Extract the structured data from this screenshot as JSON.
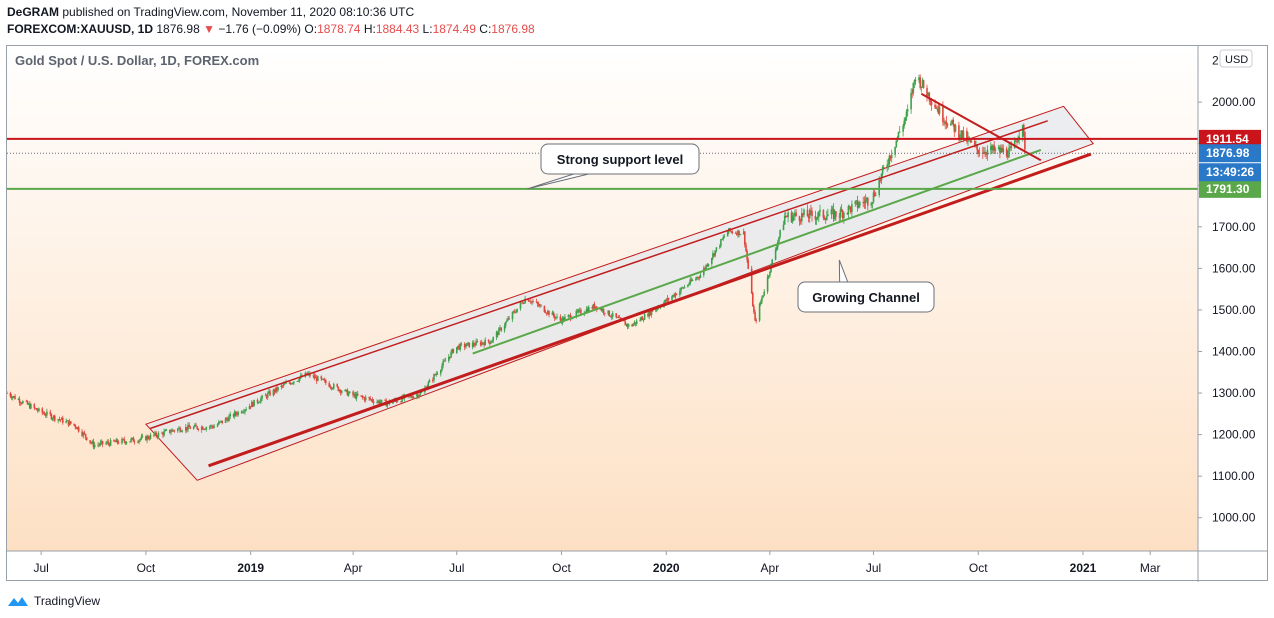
{
  "header": {
    "author": "DeGRAM",
    "published": "published on TradingView.com, November 11, 2020 08:10:36 UTC",
    "symbol": "FOREXCOM:XAUUSD, 1D",
    "last": "1876.98",
    "change": "−1.76 (−0.09%)",
    "o_label": "O:",
    "o_value": "1878.74",
    "h_label": "H:",
    "h_value": "1884.43",
    "l_label": "L:",
    "l_value": "1874.49",
    "c_label": "C:",
    "c_value": "1876.98"
  },
  "chart_data": {
    "type": "candlestick",
    "title": "Gold Spot / U.S. Dollar, 1D, FOREX.com",
    "currency": "USD",
    "y_ticks": [
      1000,
      1100,
      1200,
      1300,
      1400,
      1500,
      1600,
      1700,
      1800,
      1900,
      2000
    ],
    "y_tick_labels": [
      "1000.00",
      "1100.00",
      "1200.00",
      "1300.00",
      "1400.00",
      "1500.00",
      "1600.00",
      "1700.00",
      "1800.00",
      "1900.00",
      "2000.00"
    ],
    "y_top_partial_label": "2",
    "ylim": [
      920,
      2135
    ],
    "x_ticks": [
      {
        "label": "Jul",
        "bold": false
      },
      {
        "label": "Oct",
        "bold": false
      },
      {
        "label": "2019",
        "bold": true
      },
      {
        "label": "Apr",
        "bold": false
      },
      {
        "label": "Jul",
        "bold": false
      },
      {
        "label": "Oct",
        "bold": false
      },
      {
        "label": "2020",
        "bold": true
      },
      {
        "label": "Apr",
        "bold": false
      },
      {
        "label": "Jul",
        "bold": false
      },
      {
        "label": "Oct",
        "bold": false
      },
      {
        "label": "2021",
        "bold": true
      },
      {
        "label": "Mar",
        "bold": false
      }
    ],
    "price_path": [
      [
        "2018-06-01",
        1300
      ],
      [
        "2018-06-30",
        1255
      ],
      [
        "2018-07-31",
        1222
      ],
      [
        "2018-08-16",
        1175
      ],
      [
        "2018-09-28",
        1190
      ],
      [
        "2018-10-31",
        1215
      ],
      [
        "2018-11-30",
        1220
      ],
      [
        "2019-01-31",
        1320
      ],
      [
        "2019-02-20",
        1345
      ],
      [
        "2019-03-31",
        1295
      ],
      [
        "2019-04-30",
        1275
      ],
      [
        "2019-05-31",
        1300
      ],
      [
        "2019-06-30",
        1410
      ],
      [
        "2019-07-31",
        1425
      ],
      [
        "2019-08-31",
        1530
      ],
      [
        "2019-09-30",
        1475
      ],
      [
        "2019-10-31",
        1510
      ],
      [
        "2019-11-30",
        1460
      ],
      [
        "2019-12-31",
        1520
      ],
      [
        "2020-01-31",
        1585
      ],
      [
        "2020-02-24",
        1690
      ],
      [
        "2020-03-09",
        1685
      ],
      [
        "2020-03-19",
        1470
      ],
      [
        "2020-04-14",
        1725
      ],
      [
        "2020-05-31",
        1730
      ],
      [
        "2020-06-30",
        1770
      ],
      [
        "2020-07-31",
        1975
      ],
      [
        "2020-08-07",
        2065
      ],
      [
        "2020-08-31",
        1965
      ],
      [
        "2020-09-30",
        1885
      ],
      [
        "2020-10-31",
        1880
      ],
      [
        "2020-11-09",
        1955
      ],
      [
        "2020-11-11",
        1876.98
      ]
    ],
    "horizontal_levels": [
      {
        "name": "resistance",
        "value": 1911.54,
        "color": "#c9141b",
        "label": "1911.54"
      },
      {
        "name": "support",
        "value": 1791.3,
        "color": "#5aa84a",
        "label": "1791.30"
      },
      {
        "name": "last-price",
        "value": 1876.98,
        "color": "#2a79c9",
        "label": "1876.98"
      }
    ],
    "countdown_label": "13:49:26",
    "channel": {
      "outer": [
        [
          "2018-10-01",
          1225
        ],
        [
          "2020-12-15",
          1990
        ],
        [
          "2021-01-10",
          1900
        ],
        [
          "2018-11-15",
          1090
        ]
      ],
      "upper_line": [
        [
          "2018-10-05",
          1215
        ],
        [
          "2020-12-01",
          1955
        ]
      ],
      "lower_line": [
        [
          "2018-11-25",
          1125
        ],
        [
          "2021-01-08",
          1875
        ]
      ]
    },
    "mid_line": [
      [
        "2019-07-15",
        1395
      ],
      [
        "2020-11-25",
        1885
      ]
    ],
    "triangle_line": [
      [
        "2020-08-12",
        2020
      ],
      [
        "2020-11-25",
        1860
      ]
    ],
    "annotations": [
      {
        "text": "Strong support level",
        "anchor": [
          "2019-09-01",
          1791.3
        ]
      },
      {
        "text": "Growing Channel",
        "anchor": [
          "2020-06-01",
          1620
        ]
      }
    ],
    "colors": {
      "candle_up": "#3aa24a",
      "candle_down": "#e0463c",
      "channel_line": "#c21c1c",
      "support_line": "#5aa84a",
      "background_top": "#ffffff",
      "background_bottom": "#fde0c4"
    }
  },
  "footer": {
    "brand": "TradingView"
  }
}
